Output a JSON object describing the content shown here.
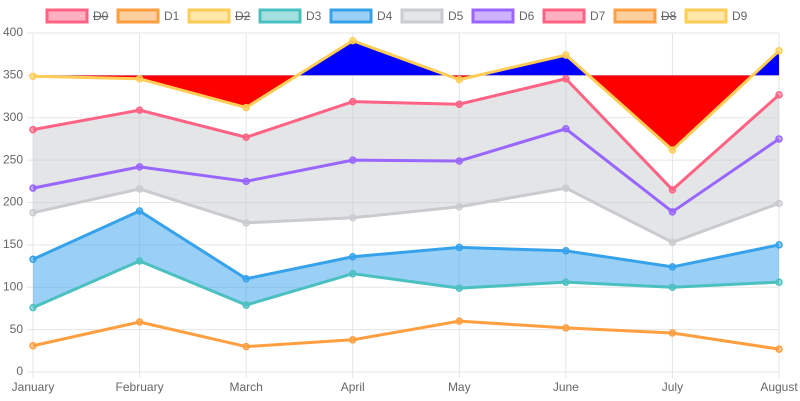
{
  "chart_data": {
    "type": "line",
    "categories": [
      "January",
      "February",
      "March",
      "April",
      "May",
      "June",
      "July",
      "August"
    ],
    "ylim": [
      0,
      400
    ],
    "yticks": [
      0,
      50,
      100,
      150,
      200,
      250,
      300,
      350,
      400
    ],
    "grid": true,
    "legend": "top",
    "series": [
      {
        "name": "D0",
        "color": "#ff6384",
        "hidden": true
      },
      {
        "name": "D1",
        "color": "#ff9f40",
        "values": [
          31,
          59,
          30,
          38,
          60,
          52,
          46,
          27
        ]
      },
      {
        "name": "D2",
        "color": "#ffcd56",
        "hidden": true
      },
      {
        "name": "D3",
        "color": "#4bc0c0",
        "values": [
          76,
          131,
          79,
          116,
          99,
          106,
          100,
          106
        ]
      },
      {
        "name": "D4",
        "color": "#36a2eb",
        "values": [
          133,
          190,
          110,
          136,
          147,
          143,
          124,
          150
        ],
        "fill": {
          "to_series": 3,
          "color": "rgba(54,162,235,0.5)"
        }
      },
      {
        "name": "D5",
        "color": "#c9cbcf",
        "values": [
          188,
          216,
          176,
          182,
          195,
          217,
          153,
          199
        ]
      },
      {
        "name": "D6",
        "color": "#9966ff",
        "values": [
          217,
          242,
          225,
          250,
          249,
          287,
          189,
          275
        ]
      },
      {
        "name": "D7",
        "color": "#ff6384",
        "values": [
          286,
          309,
          277,
          319,
          316,
          346,
          215,
          327
        ],
        "fill": {
          "to_series": 5,
          "color": "rgba(201,203,207,0.5)"
        }
      },
      {
        "name": "D8",
        "color": "#ff9f40",
        "hidden": true
      },
      {
        "name": "D9",
        "color": "#ffcd56",
        "values": [
          349,
          346,
          312,
          391,
          345,
          374,
          262,
          379
        ],
        "fill": {
          "to_value": 350,
          "above": "#0000ff",
          "below": "#ff0000"
        }
      }
    ]
  }
}
